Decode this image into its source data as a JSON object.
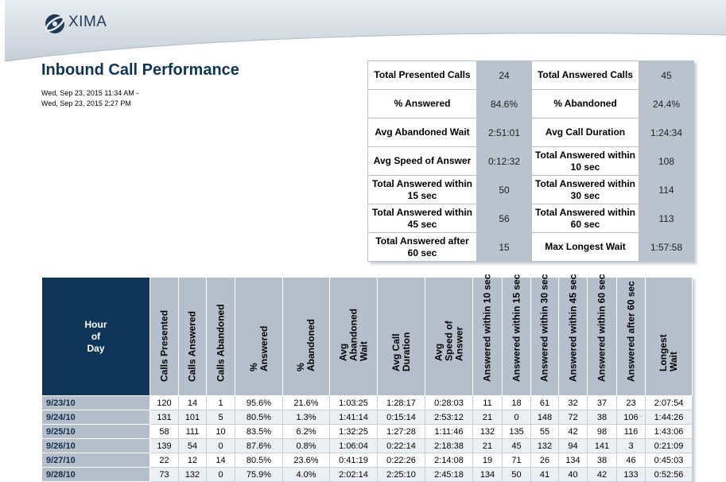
{
  "brand": {
    "name": "XIMA"
  },
  "report": {
    "title": "Inbound Call Performance",
    "date_from": "Wed, Sep 23, 2015 11:34 AM -",
    "date_to": "Wed, Sep 23, 2015 2:27 PM"
  },
  "summary": [
    {
      "l1": "Total Presented Calls",
      "v1": "24",
      "l2": "Total Answered Calls",
      "v2": "45"
    },
    {
      "l1": "% Answered",
      "v1": "84.6%",
      "l2": "% Abandoned",
      "v2": "24.4%"
    },
    {
      "l1": "Avg Abandoned Wait",
      "v1": "2:51:01",
      "l2": "Avg Call Duration",
      "v2": "1:24:34"
    },
    {
      "l1": "Avg Speed of Answer",
      "v1": "0:12:32",
      "l2": "Total Answered within 10 sec",
      "v2": "108"
    },
    {
      "l1": "Total Answered within 15 sec",
      "v1": "50",
      "l2": "Total Answered within 30 sec",
      "v2": "114"
    },
    {
      "l1": "Total Answered within 45 sec",
      "v1": "56",
      "l2": "Total Answered within 60 sec",
      "v2": "113"
    },
    {
      "l1": "Total Answered after 60 sec",
      "v1": "15",
      "l2": "Max Longest Wait",
      "v2": "1:57:58"
    }
  ],
  "table": {
    "hour_header": [
      "Hour",
      "of",
      "Day"
    ],
    "columns": [
      [
        "Calls Presented"
      ],
      [
        "Calls Answered"
      ],
      [
        "Calls Abandoned"
      ],
      [
        "%",
        "Answered"
      ],
      [
        "%",
        "Abandoned"
      ],
      [
        "Avg",
        "Abandoned",
        "Wait"
      ],
      [
        "Avg Call",
        "Duration"
      ],
      [
        "Avg",
        "Speed of",
        "Answer"
      ],
      [
        "Answered within 10 sec"
      ],
      [
        "Answered within 15 sec"
      ],
      [
        "Answered within 30 sec"
      ],
      [
        "Answered within 45 sec"
      ],
      [
        "Answered within 60 sec"
      ],
      [
        "Answered after 60 sec"
      ],
      [
        "Longest",
        "Wait"
      ]
    ],
    "rows": [
      {
        "date": "9/23/10",
        "cells": [
          "120",
          "14",
          "1",
          "95.6%",
          "21.6%",
          "1:03:25",
          "1:28:17",
          "0:28:03",
          "11",
          "18",
          "61",
          "32",
          "37",
          "23",
          "2:07:54"
        ]
      },
      {
        "date": "9/24/10",
        "cells": [
          "131",
          "101",
          "5",
          "80.5%",
          "1.3%",
          "1:41:14",
          "0:15:14",
          "2:53:12",
          "21",
          "0",
          "148",
          "72",
          "38",
          "106",
          "1:44:26"
        ]
      },
      {
        "date": "9/25/10",
        "cells": [
          "58",
          "111",
          "10",
          "83.5%",
          "6.2%",
          "1:32:25",
          "1:27:28",
          "1:11:46",
          "132",
          "135",
          "55",
          "42",
          "98",
          "116",
          "1:43:06"
        ]
      },
      {
        "date": "9/26/10",
        "cells": [
          "139",
          "54",
          "0",
          "87.6%",
          "0.8%",
          "1:06:04",
          "0:22:14",
          "2:18:38",
          "21",
          "45",
          "132",
          "94",
          "141",
          "3",
          "0:21:09"
        ]
      },
      {
        "date": "9/27/10",
        "cells": [
          "22",
          "12",
          "14",
          "80.5%",
          "23.6%",
          "0:41:19",
          "0:22:26",
          "2:14:08",
          "19",
          "71",
          "26",
          "134",
          "38",
          "46",
          "0:45:03"
        ]
      },
      {
        "date": "9/28/10",
        "cells": [
          "73",
          "132",
          "0",
          "75.9%",
          "4.0%",
          "2:02:14",
          "2:25:10",
          "2:45:18",
          "134",
          "50",
          "41",
          "40",
          "42",
          "133",
          "0:52:56"
        ]
      }
    ]
  },
  "colors": {
    "header_dark": "#0f3559",
    "header_light": "#b4bfcb",
    "value_cell": "#b8c3ce",
    "title": "#0e3458"
  }
}
